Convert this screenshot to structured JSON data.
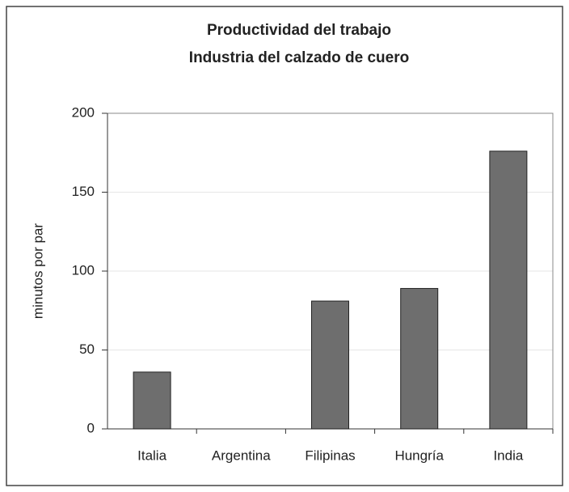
{
  "chart_data": {
    "type": "bar",
    "title": "Productividad del trabajo",
    "subtitle": "Industria del calzado de cuero",
    "y_label": "minutos por par",
    "categories": [
      "Italia",
      "Argentina",
      "Filipinas",
      "Hungría",
      "India"
    ],
    "values": [
      36,
      null,
      81,
      89,
      176
    ],
    "color": "#6e6e6e",
    "ylim": [
      0,
      200
    ],
    "yticks": [
      0,
      50,
      100,
      150,
      200
    ],
    "grid": true
  }
}
